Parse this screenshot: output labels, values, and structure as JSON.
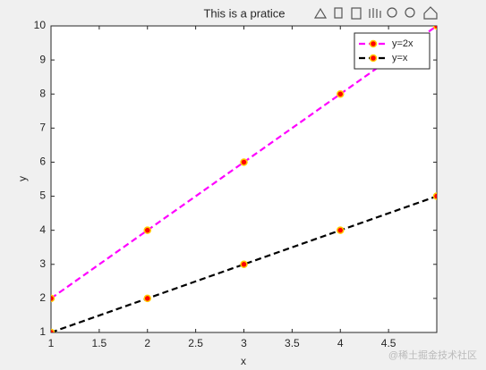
{
  "chart_data": {
    "type": "line",
    "title": "This is a pratice",
    "x_label": "x",
    "y_label": "y",
    "x": [
      1,
      2,
      3,
      4,
      5
    ],
    "series": [
      {
        "name": "y=2x",
        "color": "#ff00ff",
        "values": [
          2,
          4,
          6,
          8,
          10
        ]
      },
      {
        "name": "y=x",
        "color": "#000000",
        "values": [
          1,
          2,
          3,
          4,
          5
        ]
      }
    ],
    "marker_color": "#ff0000",
    "marker_edge": "#ffcc00",
    "xlim": [
      1,
      5
    ],
    "xticks": [
      1,
      1.5,
      2,
      2.5,
      3,
      3.5,
      4,
      4.5
    ],
    "ylim": [
      1,
      10
    ],
    "yticks": [
      1,
      2,
      3,
      4,
      5,
      6,
      7,
      8,
      9,
      10
    ],
    "legend": "upper right"
  },
  "watermark": "@稀土掘金技术社区"
}
